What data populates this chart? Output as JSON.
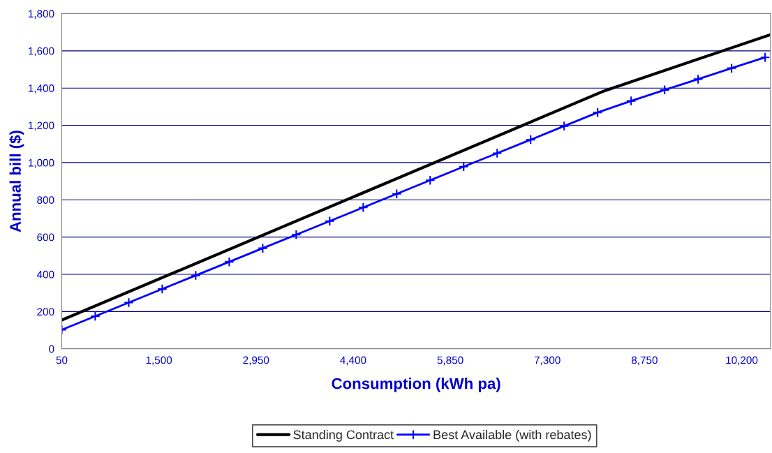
{
  "chart_data": {
    "type": "line",
    "xlabel": "Consumption (kWh pa)",
    "ylabel": "Annual bill ($)",
    "xlim": [
      50,
      10630
    ],
    "xticks": [
      {
        "value": 50,
        "label": "50"
      },
      {
        "value": 1500,
        "label": "1,500"
      },
      {
        "value": 2950,
        "label": "2,950"
      },
      {
        "value": 4400,
        "label": "4,400"
      },
      {
        "value": 5850,
        "label": "5,850"
      },
      {
        "value": 7300,
        "label": "7,300"
      },
      {
        "value": 8750,
        "label": "8,750"
      },
      {
        "value": 10200,
        "label": "10,200"
      }
    ],
    "ylim": [
      0,
      1800
    ],
    "yticks": [
      0,
      200,
      400,
      600,
      800,
      {
        "value": 1000,
        "label": "1,000"
      },
      {
        "value": 1200,
        "label": "1,200"
      },
      {
        "value": 1400,
        "label": "1,400"
      },
      {
        "value": 1600,
        "label": "1,600"
      },
      {
        "value": 1800,
        "label": "1,800"
      }
    ],
    "grid": "y",
    "legend": "bottom",
    "series": [
      {
        "name": "Standing Contract",
        "color": "#000000",
        "marker": "none",
        "x": [
          50,
          8150,
          10630
        ],
        "values": [
          154,
          1385,
          1687
        ]
      },
      {
        "name": "Best Available (with rebates)",
        "color": "#0000ff",
        "marker": "cross",
        "x": [
          50,
          550,
          1050,
          1550,
          2050,
          2550,
          3050,
          3550,
          4050,
          4550,
          5050,
          5550,
          6050,
          6550,
          7050,
          7550,
          8050,
          8550,
          9050,
          9550,
          10050,
          10550
        ],
        "values": [
          102,
          175,
          248,
          321,
          394,
          467,
          540,
          613,
          686,
          759,
          832,
          905,
          978,
          1050,
          1123,
          1196,
          1269,
          1331,
          1390,
          1448,
          1507,
          1565
        ]
      }
    ]
  }
}
